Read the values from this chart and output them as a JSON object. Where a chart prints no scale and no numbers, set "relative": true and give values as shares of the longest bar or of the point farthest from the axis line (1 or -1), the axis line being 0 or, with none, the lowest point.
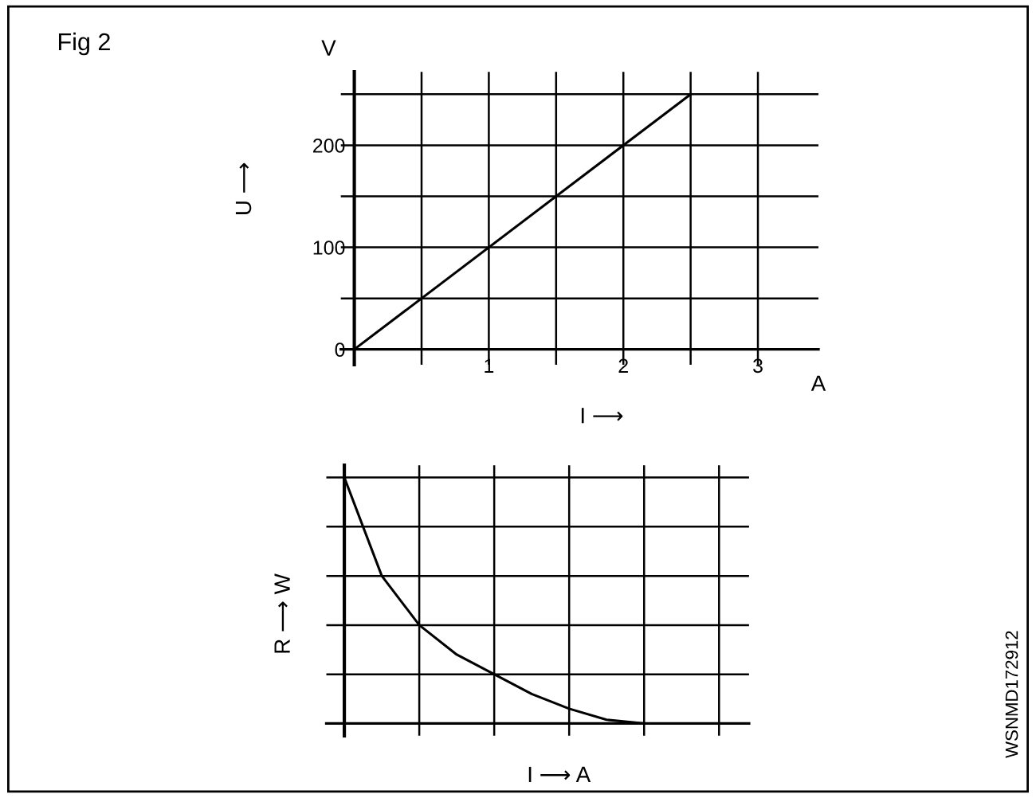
{
  "chart_data": [
    {
      "type": "line",
      "xlabel": "I ⟶",
      "ylabel": "U ⟶",
      "annotations": [
        "Fig 2",
        "V",
        "A"
      ],
      "x": [
        0,
        2.5
      ],
      "series": [
        {
          "color": "#000000",
          "values": [
            0,
            250
          ]
        }
      ],
      "xlim": [
        -0.1,
        3.45
      ],
      "ylim": [
        -15,
        272
      ],
      "xticks": [
        {
          "value": 0.5,
          "label": null
        },
        1,
        {
          "value": 1.5,
          "label": null
        },
        2,
        {
          "value": 2.5,
          "label": null
        },
        3
      ],
      "yticks": [
        0,
        {
          "value": 50,
          "label": null
        },
        100,
        {
          "value": 150,
          "label": null
        },
        200,
        {
          "value": 250,
          "label": null
        }
      ],
      "grid": true,
      "marker": "none",
      "line_style": "solid"
    },
    {
      "type": "line",
      "xlabel": "I ⟶ A",
      "ylabel": "R ⟶ W",
      "annotations": [
        "WSNMD172912"
      ],
      "relative": true,
      "categories": [
        null,
        null,
        null,
        null,
        null,
        null,
        null,
        null,
        null
      ],
      "series": [
        {
          "color": "#000000",
          "values": [
            1,
            0.6,
            0.4,
            0.28,
            0.2,
            0.12,
            0.06,
            0.015,
            0
          ]
        }
      ],
      "grid": true,
      "marker": "none",
      "line_style": "solid"
    }
  ]
}
